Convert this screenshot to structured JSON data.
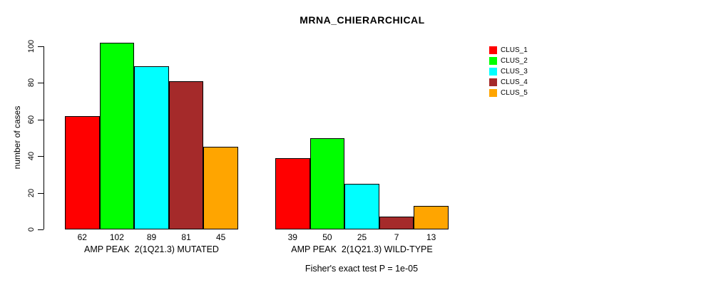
{
  "chart_data": {
    "type": "bar",
    "title": "MRNA_CHIERARCHICAL",
    "ylabel": "number of cases",
    "xlabel": "",
    "categories": [
      "AMP PEAK  2(1Q21.3) MUTATED",
      "AMP PEAK  2(1Q21.3) WILD-TYPE"
    ],
    "series": [
      {
        "name": "CLUS_1",
        "color": "#FF0000",
        "values": [
          62,
          39
        ]
      },
      {
        "name": "CLUS_2",
        "color": "#00FF00",
        "values": [
          102,
          50
        ]
      },
      {
        "name": "CLUS_3",
        "color": "#00FFFF",
        "values": [
          89,
          25
        ]
      },
      {
        "name": "CLUS_4",
        "color": "#A52A2A",
        "values": [
          81,
          7
        ]
      },
      {
        "name": "CLUS_5",
        "color": "#FFA500",
        "values": [
          45,
          13
        ]
      }
    ],
    "bar_value_labels": [
      [
        "62",
        "102",
        "89",
        "81",
        "45"
      ],
      [
        "39",
        "50",
        "25",
        "7",
        "13"
      ]
    ],
    "yticks": [
      "0",
      "20",
      "40",
      "60",
      "80",
      "100"
    ],
    "ylim": [
      0,
      102
    ],
    "grid": false,
    "legend_position": "right",
    "annotation": "Fisher's exact test P = 1e-05"
  }
}
